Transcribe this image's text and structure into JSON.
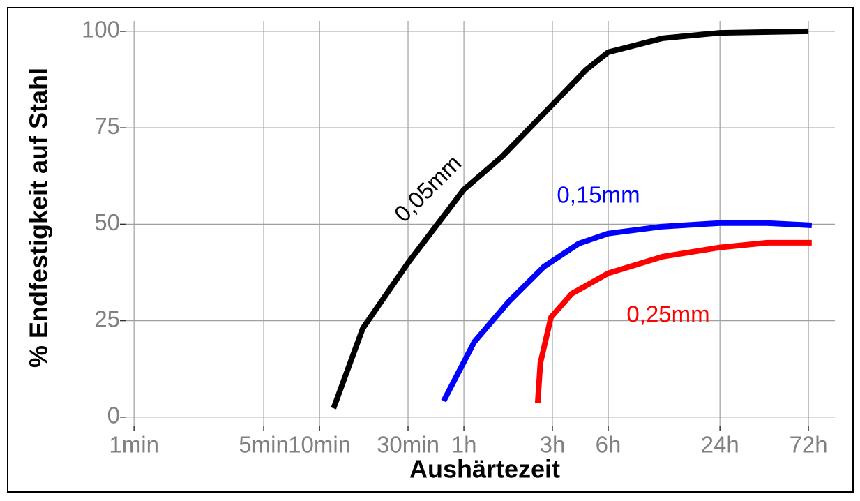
{
  "chart_data": {
    "type": "line",
    "x_title": "Aushärtezeit",
    "y_title": "% Endfestigkeit auf Stahl",
    "xscale": "log",
    "grid": true,
    "xlim": [
      0.9,
      6000
    ],
    "ylim": [
      -2.2,
      102.7
    ],
    "xticks": [
      {
        "value": 1,
        "label": "1min"
      },
      {
        "value": 5,
        "label": "5min"
      },
      {
        "value": 10,
        "label": "10min"
      },
      {
        "value": 30,
        "label": "30min"
      },
      {
        "value": 60,
        "label": "1h"
      },
      {
        "value": 180,
        "label": "3h"
      },
      {
        "value": 360,
        "label": "6h"
      },
      {
        "value": 1440,
        "label": "24h"
      },
      {
        "value": 4320,
        "label": "72h"
      }
    ],
    "yticks": [
      0,
      25,
      50,
      75,
      100
    ],
    "series": [
      {
        "name": "0,05mm",
        "color": "#000000",
        "x": [
          11.9,
          17.1,
          30,
          60,
          96.6,
          180,
          273,
          360,
          707,
          1440,
          4320
        ],
        "values": [
          2.3,
          23,
          40,
          59,
          67.6,
          81,
          90,
          94.6,
          98.2,
          99.6,
          100
        ]
      },
      {
        "name": "0,15mm",
        "color": "#0000ff",
        "x": [
          46.7,
          68.3,
          105,
          162,
          250,
          360,
          707,
          1440,
          2590,
          4500
        ],
        "values": [
          4.2,
          19.5,
          30,
          39,
          45,
          47.6,
          49.4,
          50.3,
          50.3,
          49.7
        ]
      },
      {
        "name": "0,25mm",
        "color": "#ff0000",
        "x": [
          150,
          155,
          177,
          229,
          360,
          707,
          1440,
          2590,
          4500
        ],
        "values": [
          3.6,
          14,
          25.9,
          32,
          37.3,
          41.6,
          44,
          45.2,
          45.2
        ]
      }
    ]
  }
}
